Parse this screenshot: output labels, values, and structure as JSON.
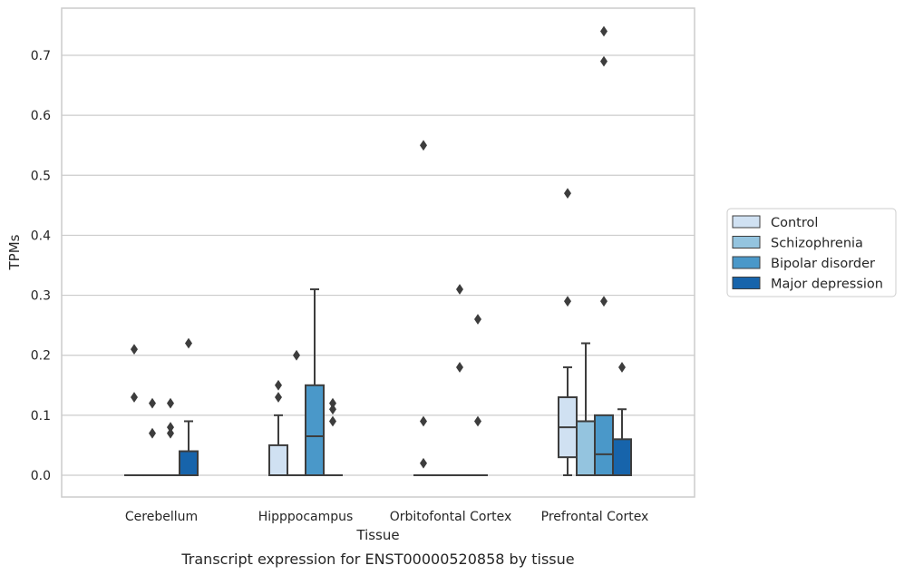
{
  "caption": "Transcript expression for ENST00000520858 by tissue",
  "chart_data": {
    "type": "box",
    "xlabel": "Tissue",
    "ylabel": "TPMs",
    "ylim": [
      -0.035,
      0.78
    ],
    "yticks": [
      0.0,
      0.1,
      0.2,
      0.3,
      0.4,
      0.5,
      0.6,
      0.7
    ],
    "ytick_labels": [
      "0.0",
      "0.1",
      "0.2",
      "0.3",
      "0.4",
      "0.5",
      "0.6",
      "0.7"
    ],
    "grid": true,
    "legend_position": "right",
    "categories": [
      "Cerebellum",
      "Hipppocampus",
      "Orbitofontal Cortex",
      "Prefrontal Cortex"
    ],
    "series": [
      {
        "name": "Control",
        "color": "#d0e1f2",
        "boxes": [
          {
            "q1": 0,
            "median": 0,
            "q3": 0,
            "whisker_low": 0,
            "whisker_high": 0,
            "outliers": [
              0.21,
              0.13
            ]
          },
          {
            "q1": 0,
            "median": 0,
            "q3": 0.05,
            "whisker_low": 0,
            "whisker_high": 0.1,
            "outliers": [
              0.15,
              0.13
            ]
          },
          {
            "q1": 0,
            "median": 0,
            "q3": 0,
            "whisker_low": 0,
            "whisker_high": 0,
            "outliers": [
              0.55,
              0.09,
              0.02
            ]
          },
          {
            "q1": 0.03,
            "median": 0.08,
            "q3": 0.13,
            "whisker_low": 0,
            "whisker_high": 0.18,
            "outliers": [
              0.47,
              0.29
            ]
          }
        ]
      },
      {
        "name": "Schizophrenia",
        "color": "#94c4df",
        "boxes": [
          {
            "q1": 0,
            "median": 0,
            "q3": 0,
            "whisker_low": 0,
            "whisker_high": 0,
            "outliers": [
              0.12,
              0.07
            ]
          },
          {
            "q1": 0,
            "median": 0,
            "q3": 0,
            "whisker_low": 0,
            "whisker_high": 0,
            "outliers": [
              0.2
            ]
          },
          {
            "q1": 0,
            "median": 0,
            "q3": 0,
            "whisker_low": 0,
            "whisker_high": 0,
            "outliers": []
          },
          {
            "q1": 0,
            "median": 0.09,
            "q3": 0.09,
            "whisker_low": 0,
            "whisker_high": 0.22,
            "outliers": []
          }
        ]
      },
      {
        "name": "Bipolar disorder",
        "color": "#4a98c9",
        "boxes": [
          {
            "q1": 0,
            "median": 0,
            "q3": 0,
            "whisker_low": 0,
            "whisker_high": 0,
            "outliers": [
              0.12,
              0.08,
              0.07
            ]
          },
          {
            "q1": 0,
            "median": 0.065,
            "q3": 0.15,
            "whisker_low": 0,
            "whisker_high": 0.31,
            "outliers": []
          },
          {
            "q1": 0,
            "median": 0,
            "q3": 0,
            "whisker_low": 0,
            "whisker_high": 0,
            "outliers": [
              0.31,
              0.18
            ]
          },
          {
            "q1": 0,
            "median": 0.035,
            "q3": 0.1,
            "whisker_low": 0,
            "whisker_high": 0.1,
            "outliers": [
              0.74,
              0.69,
              0.29
            ]
          }
        ]
      },
      {
        "name": "Major depression",
        "color": "#1764ab",
        "boxes": [
          {
            "q1": 0,
            "median": 0,
            "q3": 0.04,
            "whisker_low": 0,
            "whisker_high": 0.09,
            "outliers": [
              0.22
            ]
          },
          {
            "q1": 0,
            "median": 0,
            "q3": 0,
            "whisker_low": 0,
            "whisker_high": 0,
            "outliers": [
              0.12,
              0.11,
              0.09
            ]
          },
          {
            "q1": 0,
            "median": 0,
            "q3": 0,
            "whisker_low": 0,
            "whisker_high": 0,
            "outliers": [
              0.26,
              0.09
            ]
          },
          {
            "q1": 0,
            "median": 0,
            "q3": 0.06,
            "whisker_low": 0,
            "whisker_high": 0.11,
            "outliers": [
              0.18
            ]
          }
        ]
      }
    ]
  }
}
